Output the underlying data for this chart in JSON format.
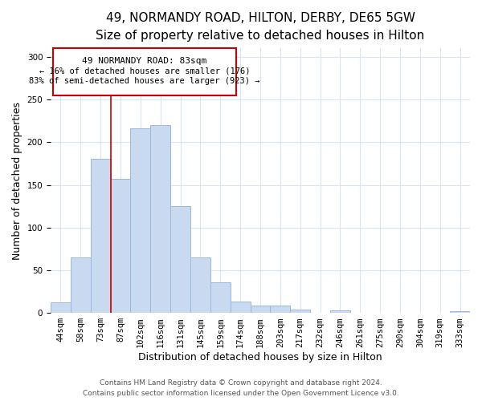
{
  "title": "49, NORMANDY ROAD, HILTON, DERBY, DE65 5GW",
  "subtitle": "Size of property relative to detached houses in Hilton",
  "xlabel": "Distribution of detached houses by size in Hilton",
  "ylabel": "Number of detached properties",
  "bar_labels": [
    "44sqm",
    "58sqm",
    "73sqm",
    "87sqm",
    "102sqm",
    "116sqm",
    "131sqm",
    "145sqm",
    "159sqm",
    "174sqm",
    "188sqm",
    "203sqm",
    "217sqm",
    "232sqm",
    "246sqm",
    "261sqm",
    "275sqm",
    "290sqm",
    "304sqm",
    "319sqm",
    "333sqm"
  ],
  "bar_heights": [
    12,
    65,
    181,
    157,
    216,
    220,
    125,
    65,
    36,
    13,
    9,
    9,
    4,
    0,
    3,
    0,
    0,
    0,
    0,
    0,
    2
  ],
  "bar_color": "#c9d9f0",
  "bar_edge_color": "#9ab8de",
  "ylim": [
    0,
    310
  ],
  "annotation_text_line1": "49 NORMANDY ROAD: 83sqm",
  "annotation_text_line2": "← 16% of detached houses are smaller (176)",
  "annotation_text_line3": "83% of semi-detached houses are larger (923) →",
  "footer_line1": "Contains HM Land Registry data © Crown copyright and database right 2024.",
  "footer_line2": "Contains public sector information licensed under the Open Government Licence v3.0.",
  "title_fontsize": 11,
  "subtitle_fontsize": 9.5,
  "axis_label_fontsize": 9,
  "tick_fontsize": 7.5,
  "annotation_fontsize": 8,
  "footer_fontsize": 6.5,
  "background_color": "#ffffff",
  "grid_color": "#d8e4f0"
}
